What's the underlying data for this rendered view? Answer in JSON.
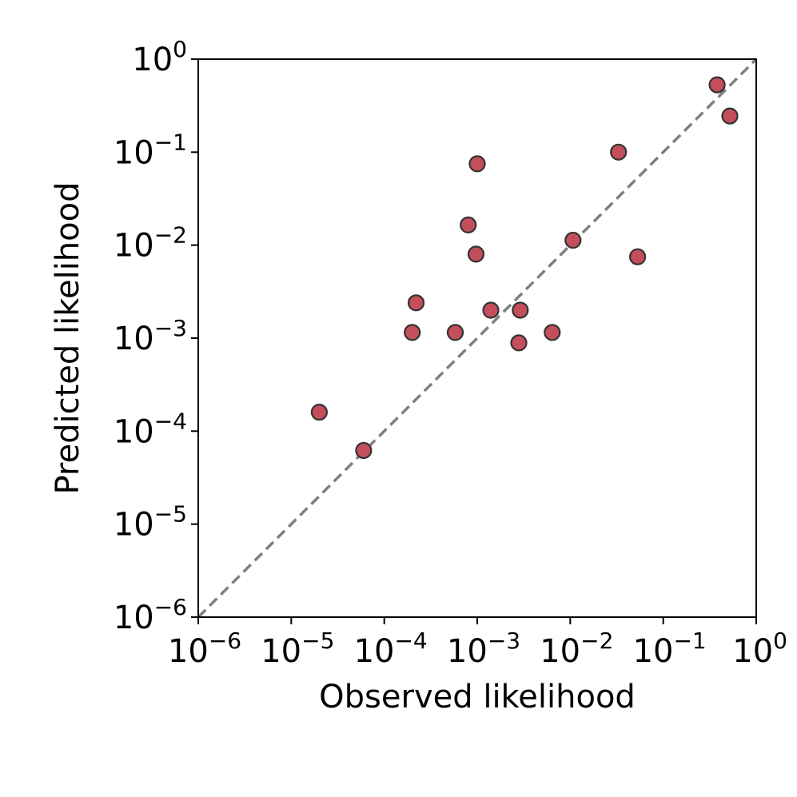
{
  "chart_data": {
    "type": "scatter",
    "title": "",
    "xlabel": "Observed likelihood",
    "ylabel": "Predicted likelihood",
    "xscale": "log",
    "yscale": "log",
    "xlim": [
      1e-06,
      1
    ],
    "ylim": [
      1e-06,
      1
    ],
    "x_ticks": [
      {
        "base": "10",
        "exp": "−6"
      },
      {
        "base": "10",
        "exp": "−5"
      },
      {
        "base": "10",
        "exp": "−4"
      },
      {
        "base": "10",
        "exp": "−3"
      },
      {
        "base": "10",
        "exp": "−2"
      },
      {
        "base": "10",
        "exp": "−1"
      },
      {
        "base": "10",
        "exp": "0"
      }
    ],
    "y_ticks": [
      {
        "base": "10",
        "exp": "−6"
      },
      {
        "base": "10",
        "exp": "−5"
      },
      {
        "base": "10",
        "exp": "−4"
      },
      {
        "base": "10",
        "exp": "−3"
      },
      {
        "base": "10",
        "exp": "−2"
      },
      {
        "base": "10",
        "exp": "−1"
      },
      {
        "base": "10",
        "exp": "0"
      }
    ],
    "grid": false,
    "reference_line": "y = x (dashed gray)",
    "points": [
      {
        "x": 2e-05,
        "y": 0.00016
      },
      {
        "x": 6e-05,
        "y": 6.2e-05
      },
      {
        "x": 0.0002,
        "y": 0.00115
      },
      {
        "x": 0.00022,
        "y": 0.0024
      },
      {
        "x": 0.00058,
        "y": 0.00115
      },
      {
        "x": 0.0008,
        "y": 0.0165
      },
      {
        "x": 0.00097,
        "y": 0.008
      },
      {
        "x": 0.001,
        "y": 0.075
      },
      {
        "x": 0.0014,
        "y": 0.002
      },
      {
        "x": 0.0028,
        "y": 0.00089
      },
      {
        "x": 0.0029,
        "y": 0.002
      },
      {
        "x": 0.0064,
        "y": 0.00115
      },
      {
        "x": 0.0107,
        "y": 0.0113
      },
      {
        "x": 0.033,
        "y": 0.1
      },
      {
        "x": 0.053,
        "y": 0.0075
      },
      {
        "x": 0.38,
        "y": 0.53
      },
      {
        "x": 0.52,
        "y": 0.245
      }
    ],
    "colors": {
      "marker_fill": "#c44e5c",
      "marker_edge": "#333333",
      "reference_line": "#808080",
      "axes": "#000000"
    }
  }
}
